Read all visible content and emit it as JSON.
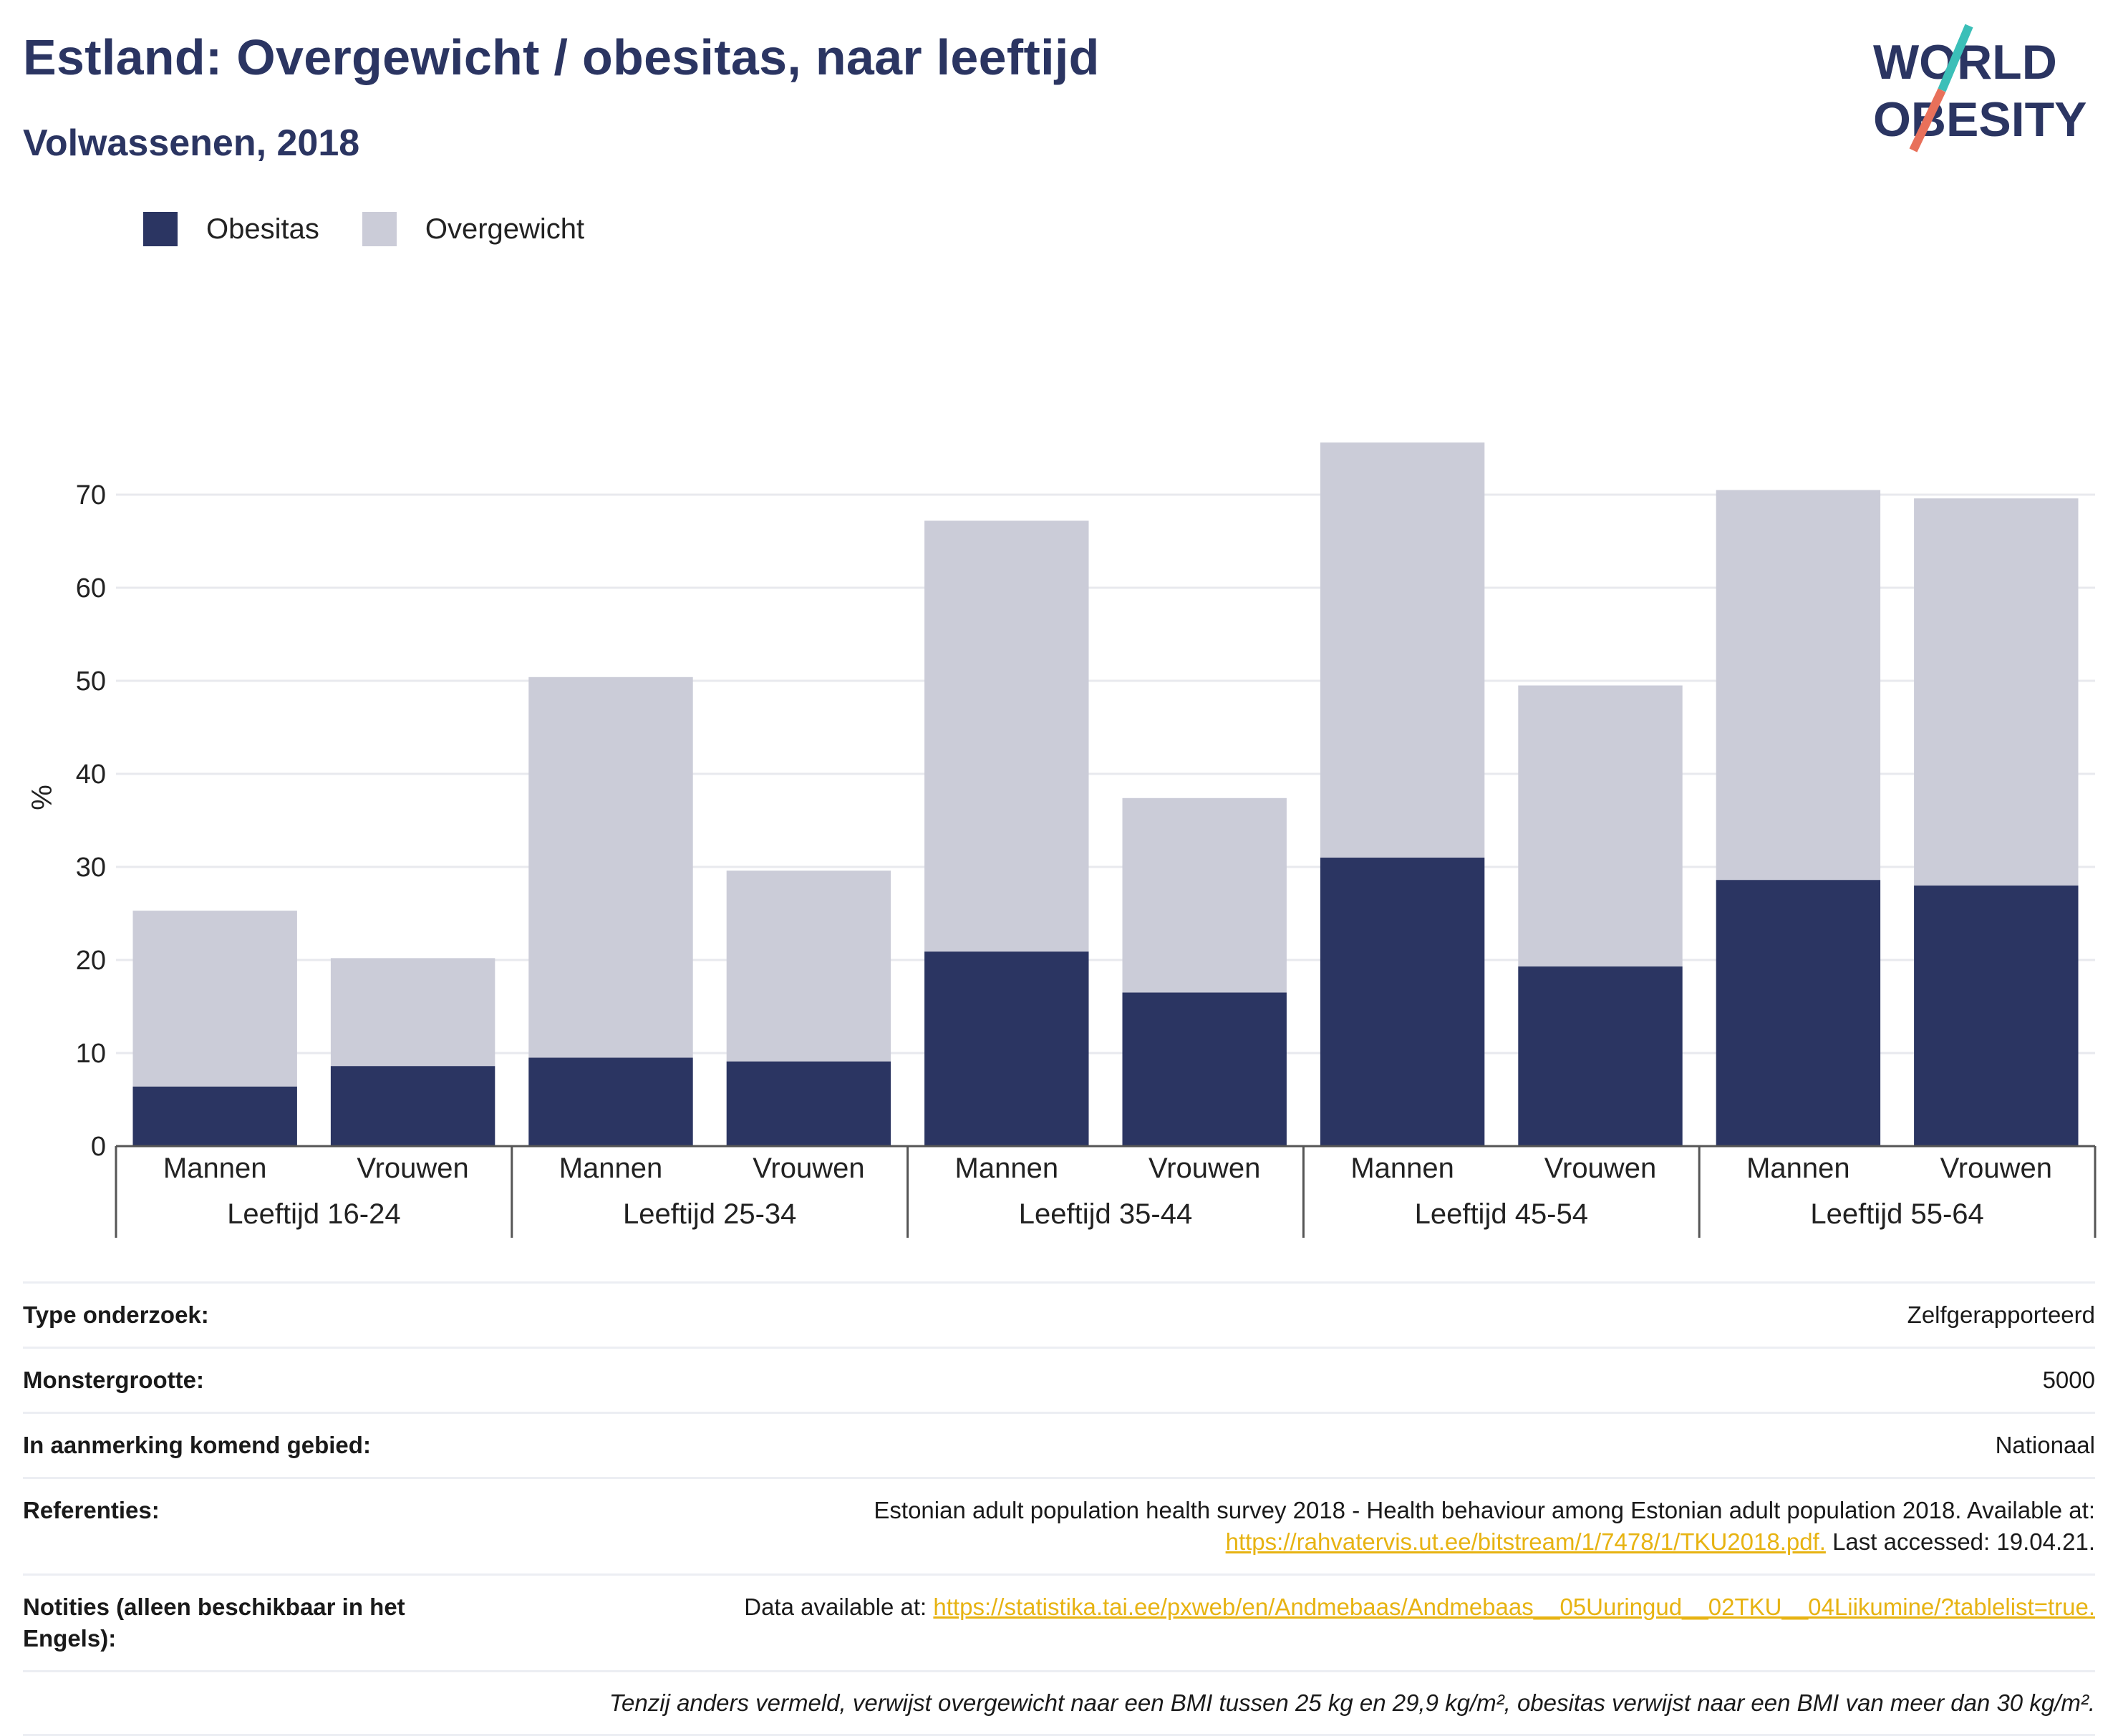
{
  "header": {
    "title": "Estland: Overgewicht / obesitas, naar leeftijd",
    "subtitle": "Volwassenen, 2018"
  },
  "logo": {
    "line1": "WORLD",
    "line2": "OBESITY",
    "colors": {
      "text": "#2b3562",
      "slash_top": "#3bbfb8",
      "slash_bottom": "#e8705a"
    }
  },
  "legend": [
    {
      "label": "Obesitas",
      "color": "#2b3562"
    },
    {
      "label": "Overgewicht",
      "color": "#cbccd8"
    }
  ],
  "chart_data": {
    "type": "bar",
    "stacked": true,
    "ylabel": "%",
    "ylim": [
      0,
      78
    ],
    "yticks": [
      0,
      10,
      20,
      30,
      40,
      50,
      60,
      70
    ],
    "grid": true,
    "legend_position": "top-left",
    "groups": [
      "Leeftijd 16-24",
      "Leeftijd 25-34",
      "Leeftijd 35-44",
      "Leeftijd 45-54",
      "Leeftijd 55-64"
    ],
    "categories": [
      "Mannen",
      "Vrouwen",
      "Mannen",
      "Vrouwen",
      "Mannen",
      "Vrouwen",
      "Mannen",
      "Vrouwen",
      "Mannen",
      "Vrouwen"
    ],
    "series": [
      {
        "name": "Obesitas",
        "color": "#2b3562",
        "values": [
          6.4,
          8.6,
          9.5,
          9.1,
          20.9,
          16.5,
          31.0,
          19.3,
          28.6,
          28.0
        ]
      },
      {
        "name": "Overgewicht",
        "color": "#cbccd8",
        "values": [
          18.9,
          11.6,
          40.9,
          20.5,
          46.3,
          20.9,
          44.6,
          30.2,
          41.9,
          41.6
        ]
      }
    ]
  },
  "info": {
    "type_label": "Type onderzoek:",
    "type_value": "Zelfgerapporteerd",
    "sample_label": "Monstergrootte:",
    "sample_value": "5000",
    "area_label": "In aanmerking komend gebied:",
    "area_value": "Nationaal",
    "refs_label": "Referenties:",
    "refs_text": "Estonian adult population health survey 2018 - Health behaviour among Estonian adult population 2018. Available at:",
    "refs_link": "https://rahvatervis.ut.ee/bitstream/1/7478/1/TKU2018.pdf.",
    "refs_after": "Last accessed: 19.04.21.",
    "notes_label": "Notities (alleen beschikbaar in het Engels):",
    "notes_text": "Data available at:",
    "notes_link": "https://statistika.tai.ee/pxweb/en/Andmebaas/Andmebaas__05Uuringud__02TKU__04Liikumine/?tablelist=true.",
    "footnote": "Tenzij anders vermeld, verwijst overgewicht naar een BMI tussen 25 kg en 29,9 kg/m², obesitas verwijst naar een BMI van meer dan 30 kg/m²."
  }
}
